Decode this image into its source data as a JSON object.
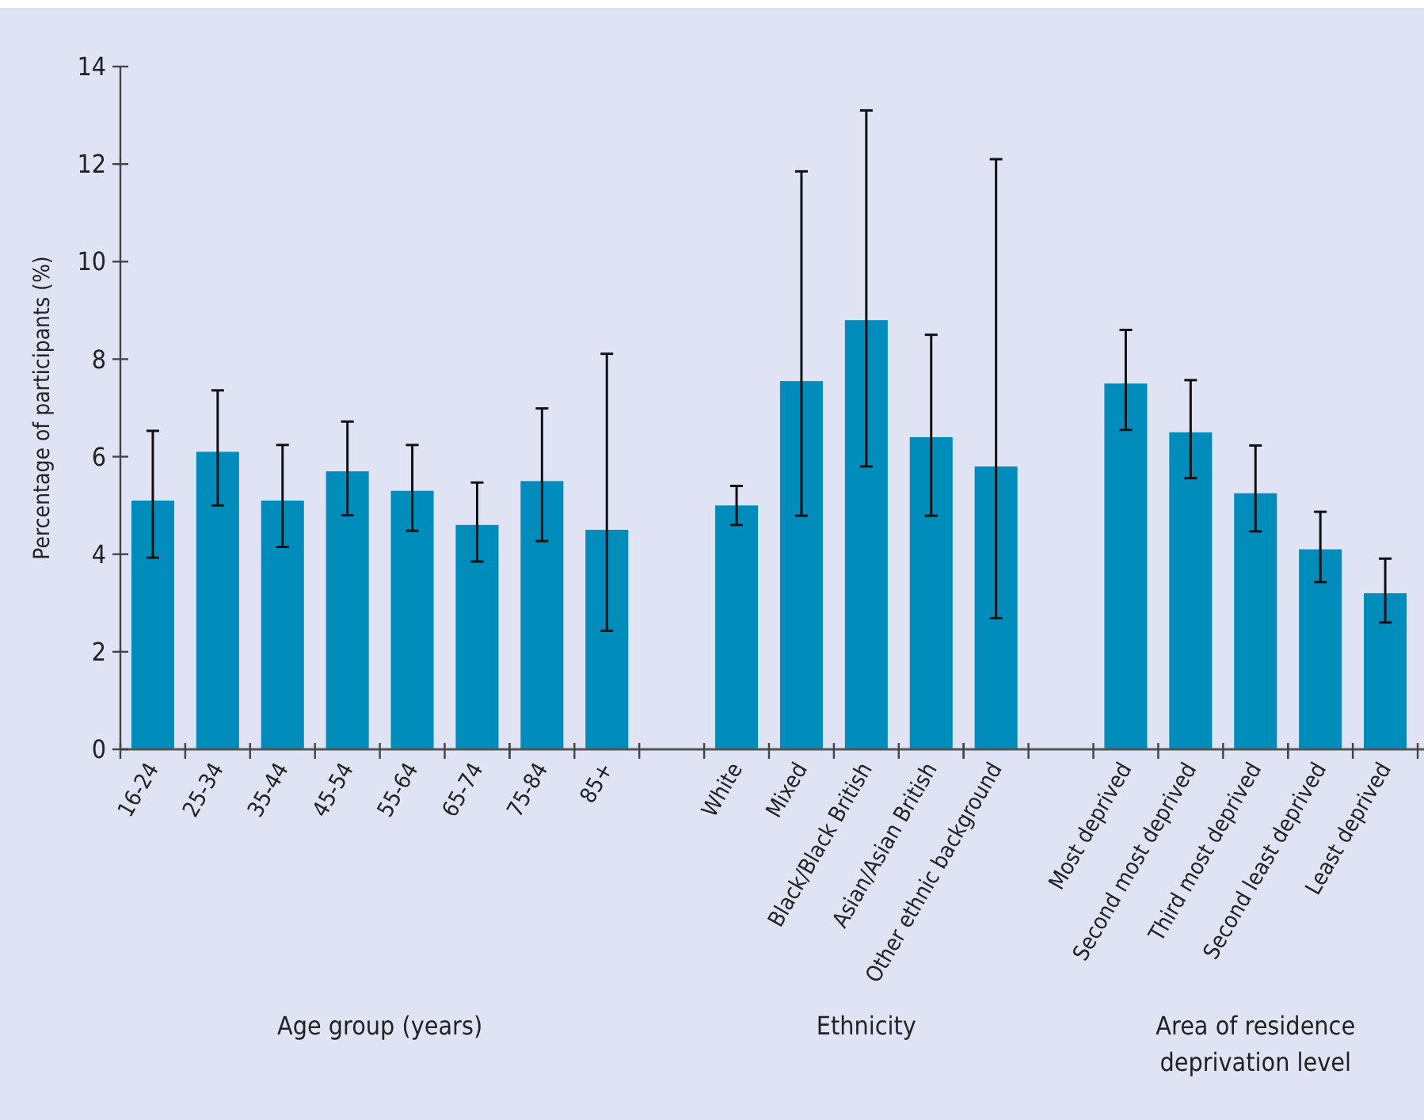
{
  "chart_data": {
    "type": "bar",
    "ylabel": "Percentage of participants (%)",
    "categories": [
      "16-24",
      "25-34",
      "35-44",
      "45-54",
      "55-64",
      "65-74",
      "75-84",
      "85+",
      null,
      "White",
      "Mixed",
      "Black/Black British",
      "Asian/Asian British",
      "Other ethnic background",
      null,
      "Most deprived",
      "Second most deprived",
      "Third most deprived",
      "Second least deprived",
      "Least deprived"
    ],
    "values": [
      5.1,
      6.1,
      5.1,
      5.7,
      5.3,
      4.6,
      5.5,
      4.5,
      null,
      5.0,
      7.55,
      8.8,
      6.4,
      5.8,
      null,
      7.5,
      6.5,
      5.25,
      4.1,
      3.2
    ],
    "errors": [
      [
        3.93,
        6.53
      ],
      [
        5.0,
        7.36
      ],
      [
        4.15,
        6.24
      ],
      [
        4.8,
        6.72
      ],
      [
        4.48,
        6.24
      ],
      [
        3.85,
        5.47
      ],
      [
        4.27,
        6.99
      ],
      [
        2.43,
        8.11
      ],
      null,
      [
        4.6,
        5.4
      ],
      [
        4.79,
        11.85
      ],
      [
        5.8,
        13.1
      ],
      [
        4.79,
        8.5
      ],
      [
        2.69,
        12.1
      ],
      null,
      [
        6.55,
        8.6
      ],
      [
        5.56,
        7.57
      ],
      [
        4.47,
        6.23
      ],
      [
        3.43,
        4.87
      ],
      [
        2.6,
        3.91
      ]
    ],
    "color": "#008dbc",
    "ylim": [
      0,
      14
    ],
    "yticks": [
      0,
      2,
      4,
      6,
      8,
      10,
      12,
      14
    ],
    "grid": false,
    "annotations": [
      "Age group (years)",
      "Ethnicity",
      "Area of residence deprivation level"
    ]
  }
}
